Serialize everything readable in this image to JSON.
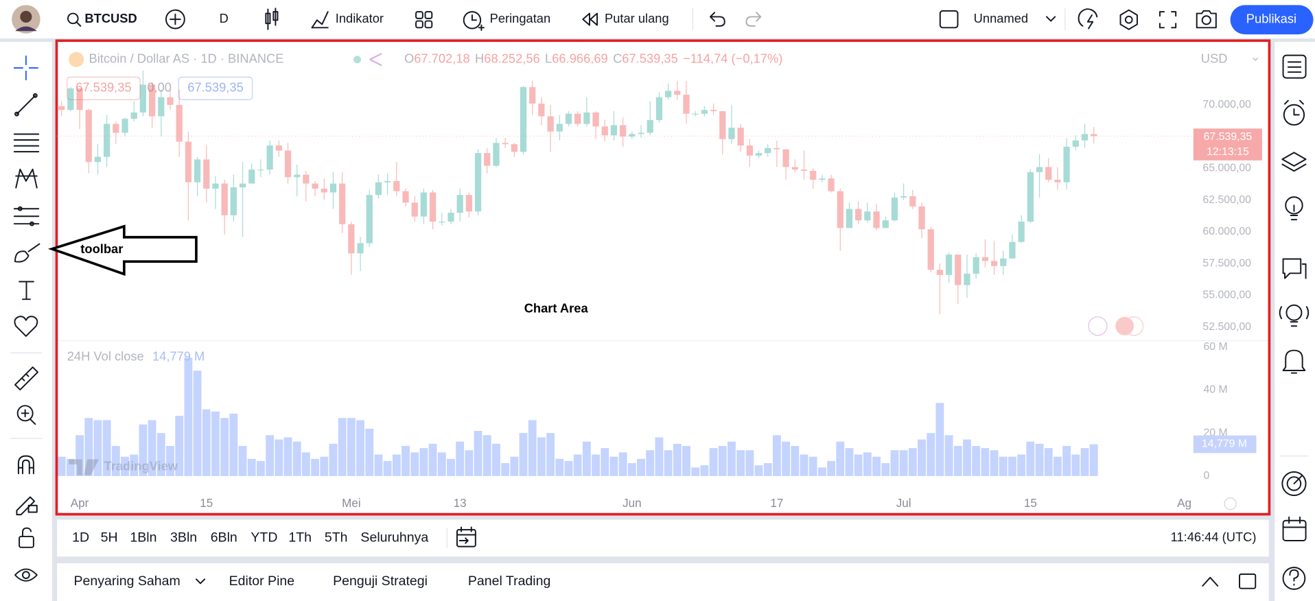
{
  "top_bar": {
    "symbol": "BTCUSD",
    "interval": "D",
    "indicators": "Indikator",
    "alerts": "Peringatan",
    "replay": "Putar ulang",
    "layout": "Unnamed",
    "publish": "Publikasi"
  },
  "chart_data": {
    "type": "candlestick",
    "title": "Bitcoin / Dollar AS · 1D · BINANCE",
    "legend_ohlc": [
      "O",
      "67.702,18",
      "H",
      "68.252,56",
      "L",
      "66.966,69",
      "C",
      "67.539,35"
    ],
    "change": "−114,74 (−0,17%)",
    "price_boxes": [
      "67.539,35",
      "0,00",
      "67.539,35"
    ],
    "currency": "USD",
    "up_color": "#26a69a",
    "down_color": "#ef5350",
    "candles": [
      [
        69900,
        70300,
        69100,
        69600
      ],
      [
        69600,
        71400,
        69500,
        71300
      ],
      [
        71300,
        71300,
        68100,
        69600
      ],
      [
        69600,
        69700,
        64600,
        65500
      ],
      [
        65500,
        66900,
        64500,
        65900
      ],
      [
        65900,
        69200,
        65100,
        68500
      ],
      [
        68500,
        68700,
        66900,
        67800
      ],
      [
        67800,
        69000,
        67500,
        68900
      ],
      [
        68900,
        70300,
        68700,
        69400
      ],
      [
        69400,
        72700,
        69100,
        71600
      ],
      [
        71600,
        71800,
        68200,
        69100
      ],
      [
        69100,
        71200,
        67500,
        70600
      ],
      [
        70600,
        71200,
        69600,
        70000
      ],
      [
        70000,
        71200,
        65900,
        67100
      ],
      [
        67100,
        67900,
        60900,
        63900
      ],
      [
        63900,
        65900,
        62800,
        65700
      ],
      [
        65700,
        66800,
        62300,
        63400
      ],
      [
        63400,
        64400,
        61800,
        63800
      ],
      [
        63800,
        64100,
        59800,
        61300
      ],
      [
        61300,
        64500,
        60800,
        63500
      ],
      [
        63500,
        65500,
        59600,
        63800
      ],
      [
        63800,
        65400,
        63800,
        64900
      ],
      [
        64900,
        65700,
        64300,
        64900
      ],
      [
        64900,
        67200,
        64500,
        66800
      ],
      [
        66800,
        67200,
        65900,
        66400
      ],
      [
        66400,
        67000,
        63800,
        64300
      ],
      [
        64300,
        65300,
        62800,
        64500
      ],
      [
        64500,
        64800,
        62400,
        63800
      ],
      [
        63800,
        64000,
        62800,
        63400
      ],
      [
        63400,
        64200,
        62500,
        63100
      ],
      [
        63100,
        64700,
        61800,
        63800
      ],
      [
        63800,
        64700,
        59900,
        60600
      ],
      [
        60600,
        60800,
        56600,
        58300
      ],
      [
        58300,
        59600,
        56900,
        59100
      ],
      [
        59100,
        63300,
        58800,
        62900
      ],
      [
        62900,
        64500,
        62600,
        63900
      ],
      [
        63900,
        64600,
        62900,
        64000
      ],
      [
        64000,
        65500,
        62800,
        63200
      ],
      [
        63200,
        63400,
        62000,
        62300
      ],
      [
        62300,
        62800,
        60800,
        61200
      ],
      [
        61200,
        63400,
        60600,
        63100
      ],
      [
        63100,
        63300,
        60200,
        60800
      ],
      [
        60800,
        61500,
        60500,
        60800
      ],
      [
        60800,
        61800,
        60600,
        61500
      ],
      [
        61500,
        63400,
        60800,
        62900
      ],
      [
        62900,
        63100,
        61100,
        61600
      ],
      [
        61600,
        66500,
        61300,
        66200
      ],
      [
        66200,
        66600,
        64600,
        65200
      ],
      [
        65200,
        67400,
        65100,
        67000
      ],
      [
        67000,
        67400,
        66600,
        66900
      ],
      [
        66900,
        67000,
        65900,
        66300
      ],
      [
        66300,
        71500,
        66100,
        71400
      ],
      [
        71400,
        71900,
        69200,
        70100
      ],
      [
        70100,
        70600,
        68400,
        69100
      ],
      [
        69100,
        70000,
        66300,
        67900
      ],
      [
        67900,
        69200,
        67200,
        68500
      ],
      [
        68500,
        69500,
        68300,
        69300
      ],
      [
        69300,
        69500,
        68300,
        68500
      ],
      [
        68500,
        70600,
        68300,
        69400
      ],
      [
        69400,
        69500,
        67300,
        68300
      ],
      [
        68300,
        68800,
        67100,
        67600
      ],
      [
        67600,
        69500,
        67200,
        68400
      ],
      [
        68400,
        69000,
        66700,
        67500
      ],
      [
        67500,
        67900,
        67300,
        67700
      ],
      [
        67700,
        68400,
        67400,
        67800
      ],
      [
        67800,
        70300,
        67600,
        68800
      ],
      [
        68800,
        71000,
        68600,
        70600
      ],
      [
        70600,
        71700,
        70400,
        71100
      ],
      [
        71100,
        71900,
        70400,
        70800
      ],
      [
        70800,
        71900,
        68500,
        69300
      ],
      [
        69300,
        69500,
        69100,
        69300
      ],
      [
        69300,
        69900,
        69100,
        69600
      ],
      [
        69600,
        70100,
        69200,
        69500
      ],
      [
        69500,
        69500,
        66100,
        67300
      ],
      [
        67300,
        70000,
        66900,
        68200
      ],
      [
        68200,
        68500,
        66300,
        66800
      ],
      [
        66800,
        67300,
        65100,
        66000
      ],
      [
        66000,
        66400,
        65800,
        66200
      ],
      [
        66200,
        66900,
        65900,
        66600
      ],
      [
        66600,
        67200,
        65100,
        66500
      ],
      [
        66500,
        66500,
        64100,
        65100
      ],
      [
        65100,
        65700,
        64700,
        64900
      ],
      [
        64900,
        66400,
        64100,
        64800
      ],
      [
        64800,
        65000,
        63400,
        64100
      ],
      [
        64100,
        64500,
        63900,
        64200
      ],
      [
        64200,
        64500,
        63100,
        63200
      ],
      [
        63200,
        63400,
        58500,
        60300
      ],
      [
        60300,
        62300,
        60300,
        61800
      ],
      [
        61800,
        62400,
        60600,
        60900
      ],
      [
        60900,
        62300,
        60700,
        61600
      ],
      [
        61600,
        62200,
        60100,
        60300
      ],
      [
        60300,
        61200,
        60300,
        60900
      ],
      [
        60900,
        63100,
        60800,
        62700
      ],
      [
        62700,
        63800,
        62500,
        62800
      ],
      [
        62800,
        63300,
        61800,
        62000
      ],
      [
        62000,
        62300,
        59500,
        60200
      ],
      [
        60200,
        60400,
        56800,
        57000
      ],
      [
        57000,
        57500,
        53500,
        56600
      ],
      [
        56600,
        58400,
        56000,
        58200
      ],
      [
        58200,
        58200,
        54300,
        55800
      ],
      [
        55800,
        58200,
        54800,
        56700
      ],
      [
        56700,
        58300,
        56300,
        58000
      ],
      [
        58000,
        59400,
        57200,
        57700
      ],
      [
        57700,
        59300,
        56600,
        57300
      ],
      [
        57300,
        58500,
        56600,
        57900
      ],
      [
        57900,
        59800,
        57900,
        59200
      ],
      [
        59200,
        61300,
        59100,
        60800
      ],
      [
        60800,
        64900,
        60700,
        64700
      ],
      [
        64700,
        66100,
        62700,
        65100
      ],
      [
        65100,
        65800,
        63900,
        64100
      ],
      [
        64100,
        65100,
        63300,
        63900
      ],
      [
        63900,
        67400,
        63300,
        66700
      ],
      [
        66700,
        67600,
        66400,
        67200
      ],
      [
        67200,
        68500,
        66600,
        67700
      ],
      [
        67702.18,
        68252.56,
        66966.69,
        67539.35
      ]
    ],
    "xlim": [
      -0.5,
      125
    ],
    "xticks": [
      {
        "value": 2,
        "label": "Apr"
      },
      {
        "value": 16,
        "label": "15"
      },
      {
        "value": 32,
        "label": "Mei"
      },
      {
        "value": 44,
        "label": "13"
      },
      {
        "value": 63,
        "label": "Jun"
      },
      {
        "value": 79,
        "label": "17"
      },
      {
        "value": 93,
        "label": "Jul"
      },
      {
        "value": 107,
        "label": "15"
      },
      {
        "value": 124,
        "label": "Ag"
      }
    ],
    "ylim": [
      51450,
      72450
    ],
    "yticks": [
      {
        "value": 52500,
        "label": "52.500,00"
      },
      {
        "value": 55000,
        "label": "55.000,00"
      },
      {
        "value": 57500,
        "label": "57.500,00"
      },
      {
        "value": 60000,
        "label": "60.000,00"
      },
      {
        "value": 62500,
        "label": "62.500,00"
      },
      {
        "value": 65000,
        "label": "65.000,00"
      },
      {
        "value": 70000,
        "label": "70.000,00"
      }
    ],
    "last_price": {
      "value": 67539.35,
      "label": "67.539,35"
    },
    "countdown": "12:13:15",
    "volume": {
      "name": "24H Vol close",
      "color": "#2962ff",
      "values": [
        9,
        8,
        19,
        27,
        26,
        26,
        14,
        9,
        10,
        24,
        26,
        20,
        14,
        28,
        55,
        49,
        31,
        30,
        27,
        29,
        14,
        8,
        7,
        19,
        17,
        18,
        16,
        11,
        8,
        9,
        15,
        27,
        27,
        26,
        22,
        10,
        7,
        10,
        14,
        11,
        13,
        15,
        11,
        8,
        16,
        12,
        21,
        19,
        15,
        6,
        9,
        20,
        26,
        18,
        20,
        8,
        7,
        10,
        16,
        10,
        13,
        9,
        11,
        6,
        8,
        12,
        18,
        12,
        15,
        14,
        4,
        5,
        13,
        14,
        16,
        12,
        12,
        5,
        6,
        19,
        16,
        14,
        10,
        9,
        4,
        7,
        16,
        13,
        10,
        11,
        9,
        6,
        12,
        12,
        13,
        17,
        20,
        34,
        19,
        14,
        17,
        14,
        13,
        12,
        9,
        9,
        10,
        16,
        15,
        13,
        9,
        14,
        10,
        13,
        14.779
      ],
      "ylim": [
        -8.6,
        63.1
      ],
      "yticks": [
        0,
        {
          "value": 20,
          "label": "20 M"
        },
        {
          "value": 40,
          "label": "40 M"
        },
        {
          "value": 60,
          "label": "60 M"
        }
      ],
      "last_value": {
        "value": 14.779,
        "label": "14,779 M"
      }
    },
    "watermark": "TradingView"
  },
  "annotations": {
    "chart_area": "Chart Area",
    "toolbar": "toolbar"
  },
  "bottom_bar": {
    "ranges": [
      "1D",
      "5H",
      "1Bln",
      "3Bln",
      "6Bln",
      "YTD",
      "1Th",
      "5Th",
      "Seluruhnya"
    ],
    "clock": "11:46:44 (UTC)"
  },
  "bottom_panel": {
    "tabs": [
      "Penyaring Saham",
      "Editor Pine",
      "Penguji Strategi",
      "Panel Trading"
    ]
  }
}
